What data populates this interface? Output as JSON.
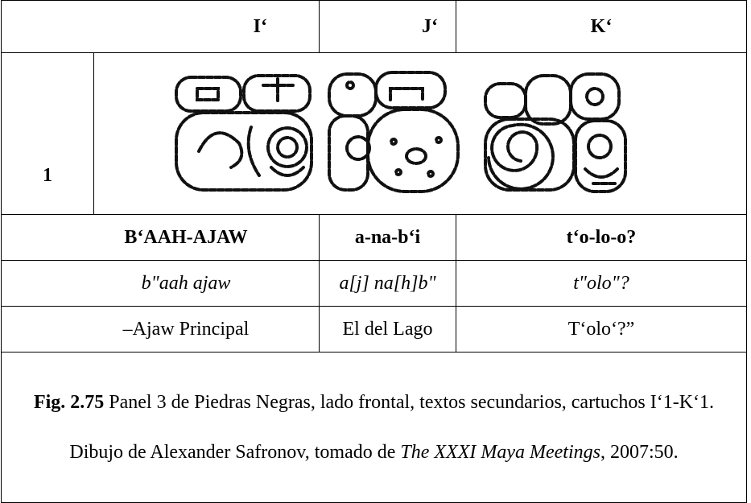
{
  "header": {
    "cells": [
      "I‘",
      "J‘",
      "K‘"
    ]
  },
  "glyph_row": {
    "label": "1"
  },
  "rows": [
    [
      "B‘AAH-AJAW",
      "a-na-b‘i",
      "t‘o-lo-o?"
    ],
    [
      "b\"aah ajaw",
      "a[j] na[h]b\"",
      "t\"olo\"?"
    ],
    [
      "‒Ajaw Principal",
      "El del Lago",
      "T‘olo‘?”"
    ]
  ],
  "caption": {
    "label": "Fig. 2.75",
    "text": " Panel 3 de Piedras Negras, lado frontal, textos secundarios, cartuchos I‘1-K‘1. Dibujo de Alexander Safronov, tomado de ",
    "source": "The XXXI Maya Meetings",
    "tail": ", 2007:50."
  }
}
